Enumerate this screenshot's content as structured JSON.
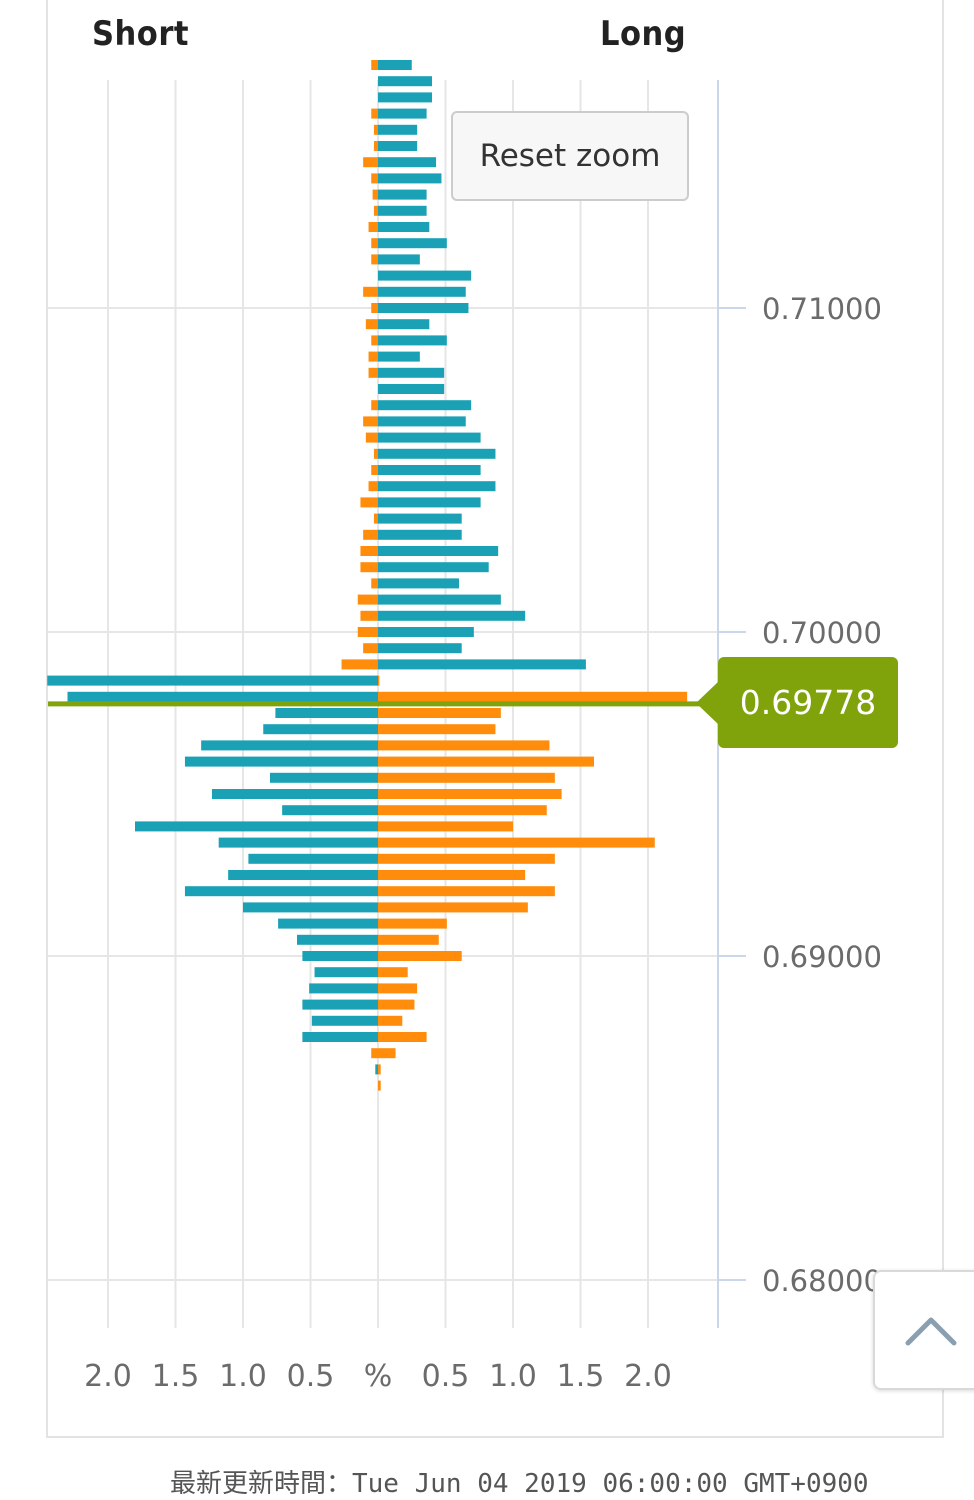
{
  "header": {
    "short_label": "Short",
    "long_label": "Long"
  },
  "controls": {
    "reset_zoom_label": "Reset zoom"
  },
  "current_price": {
    "label": "0.69778",
    "value": 0.69778,
    "color": "#80a30c"
  },
  "footer": {
    "updated_text": "最新更新時間：Tue Jun 04 2019 06:00:00 GMT+0900"
  },
  "colors": {
    "blue": "#1aa1b5",
    "orange": "#ff8c0a",
    "grid": "#e6e6e6",
    "axis": "#ccd6eb"
  },
  "icons": {
    "scroll_top": "chevron-up-icon"
  },
  "chart_data": {
    "type": "bar",
    "orientation": "horizontal",
    "unit": "%",
    "x_tick_labels": [
      "2.0",
      "1.5",
      "1.0",
      "0.5",
      "%",
      "0.5",
      "1.0",
      "1.5",
      "2.0"
    ],
    "y_tick_labels": [
      "0.71000",
      "0.70000",
      "0.69000",
      "0.68000"
    ],
    "y_ticks": [
      0.71,
      0.7,
      0.69,
      0.68
    ],
    "xlim": [
      -2.45,
      2.45
    ],
    "ylim": [
      0.6795,
      0.7185
    ],
    "grid": true,
    "bin_size": 0.0005,
    "series": [
      {
        "name": "Short",
        "points": [
          [
            0.7175,
            0.05,
            0
          ],
          [
            0.717,
            0,
            0
          ],
          [
            0.7165,
            0,
            0
          ],
          [
            0.716,
            0.05,
            0
          ],
          [
            0.7155,
            0.03,
            0
          ],
          [
            0.715,
            0.03,
            0
          ],
          [
            0.7145,
            0.11,
            0
          ],
          [
            0.714,
            0.05,
            0
          ],
          [
            0.7135,
            0.04,
            0
          ],
          [
            0.713,
            0.03,
            0
          ],
          [
            0.7125,
            0.07,
            0
          ],
          [
            0.712,
            0.05,
            0
          ],
          [
            0.7115,
            0.05,
            0
          ],
          [
            0.711,
            0,
            0
          ],
          [
            0.7105,
            0.11,
            0
          ],
          [
            0.71,
            0.05,
            0
          ],
          [
            0.7095,
            0.09,
            0
          ],
          [
            0.709,
            0.05,
            0
          ],
          [
            0.7085,
            0.07,
            0
          ],
          [
            0.708,
            0.07,
            0
          ],
          [
            0.7075,
            0,
            0
          ],
          [
            0.707,
            0.05,
            0
          ],
          [
            0.7065,
            0.11,
            0
          ],
          [
            0.706,
            0.09,
            0
          ],
          [
            0.7055,
            0.03,
            0
          ],
          [
            0.705,
            0.05,
            0
          ],
          [
            0.7045,
            0.07,
            0
          ],
          [
            0.704,
            0.13,
            0
          ],
          [
            0.7035,
            0.03,
            0
          ],
          [
            0.703,
            0.11,
            0
          ],
          [
            0.7025,
            0.13,
            0
          ],
          [
            0.702,
            0.13,
            0
          ],
          [
            0.7015,
            0.05,
            0
          ],
          [
            0.701,
            0.15,
            0
          ],
          [
            0.7005,
            0.13,
            0
          ],
          [
            0.7,
            0.15,
            0
          ],
          [
            0.6995,
            0.11,
            0
          ],
          [
            0.699,
            0.27,
            0
          ],
          [
            0.6985,
            0,
            2.45
          ],
          [
            0.698,
            0,
            2.3
          ],
          [
            0.6975,
            0,
            0.76
          ],
          [
            0.697,
            0,
            0.85
          ],
          [
            0.6965,
            0,
            1.31
          ],
          [
            0.696,
            0,
            1.43
          ],
          [
            0.6955,
            0,
            0.8
          ],
          [
            0.695,
            0,
            1.23
          ],
          [
            0.6945,
            0,
            0.71
          ],
          [
            0.694,
            0,
            1.8
          ],
          [
            0.6935,
            0,
            1.18
          ],
          [
            0.693,
            0,
            0.96
          ],
          [
            0.6925,
            0,
            1.11
          ],
          [
            0.692,
            0,
            1.43
          ],
          [
            0.6915,
            0,
            1.0
          ],
          [
            0.691,
            0,
            0.74
          ],
          [
            0.6905,
            0,
            0.6
          ],
          [
            0.69,
            0,
            0.56
          ],
          [
            0.6895,
            0,
            0.47
          ],
          [
            0.689,
            0,
            0.51
          ],
          [
            0.6885,
            0,
            0.56
          ],
          [
            0.688,
            0,
            0.49
          ],
          [
            0.6875,
            0,
            0.56
          ],
          [
            0.687,
            0.05,
            0
          ],
          [
            0.6865,
            0,
            0.02
          ],
          [
            0.686,
            0,
            0
          ]
        ]
      },
      {
        "name": "Long",
        "points": [
          [
            0.7175,
            0.25,
            0
          ],
          [
            0.717,
            0.4,
            0
          ],
          [
            0.7165,
            0.4,
            0
          ],
          [
            0.716,
            0.36,
            0
          ],
          [
            0.7155,
            0.29,
            0
          ],
          [
            0.715,
            0.29,
            0
          ],
          [
            0.7145,
            0.43,
            0
          ],
          [
            0.714,
            0.47,
            0
          ],
          [
            0.7135,
            0.36,
            0
          ],
          [
            0.713,
            0.36,
            0
          ],
          [
            0.7125,
            0.38,
            0
          ],
          [
            0.712,
            0.51,
            0
          ],
          [
            0.7115,
            0.31,
            0
          ],
          [
            0.711,
            0.69,
            0
          ],
          [
            0.7105,
            0.65,
            0
          ],
          [
            0.71,
            0.67,
            0
          ],
          [
            0.7095,
            0.38,
            0
          ],
          [
            0.709,
            0.51,
            0
          ],
          [
            0.7085,
            0.31,
            0
          ],
          [
            0.708,
            0.49,
            0
          ],
          [
            0.7075,
            0.49,
            0
          ],
          [
            0.707,
            0.69,
            0
          ],
          [
            0.7065,
            0.65,
            0
          ],
          [
            0.706,
            0.76,
            0
          ],
          [
            0.7055,
            0.87,
            0
          ],
          [
            0.705,
            0.76,
            0
          ],
          [
            0.7045,
            0.87,
            0
          ],
          [
            0.704,
            0.76,
            0
          ],
          [
            0.7035,
            0.62,
            0
          ],
          [
            0.703,
            0.62,
            0
          ],
          [
            0.7025,
            0.89,
            0
          ],
          [
            0.702,
            0.82,
            0
          ],
          [
            0.7015,
            0.6,
            0
          ],
          [
            0.701,
            0.91,
            0
          ],
          [
            0.7005,
            1.09,
            0
          ],
          [
            0.7,
            0.71,
            0
          ],
          [
            0.6995,
            0.62,
            0
          ],
          [
            0.699,
            1.54,
            0
          ],
          [
            0.6985,
            0,
            0.01
          ],
          [
            0.698,
            0,
            2.29
          ],
          [
            0.6975,
            0,
            0.91
          ],
          [
            0.697,
            0,
            0.87
          ],
          [
            0.6965,
            0,
            1.27
          ],
          [
            0.696,
            0,
            1.6
          ],
          [
            0.6955,
            0,
            1.31
          ],
          [
            0.695,
            0,
            1.36
          ],
          [
            0.6945,
            0,
            1.25
          ],
          [
            0.694,
            0,
            1.0
          ],
          [
            0.6935,
            0,
            2.05
          ],
          [
            0.693,
            0,
            1.31
          ],
          [
            0.6925,
            0,
            1.09
          ],
          [
            0.692,
            0,
            1.31
          ],
          [
            0.6915,
            0,
            1.11
          ],
          [
            0.691,
            0,
            0.51
          ],
          [
            0.6905,
            0,
            0.45
          ],
          [
            0.69,
            0,
            0.62
          ],
          [
            0.6895,
            0,
            0.22
          ],
          [
            0.689,
            0,
            0.29
          ],
          [
            0.6885,
            0,
            0.27
          ],
          [
            0.688,
            0,
            0.18
          ],
          [
            0.6875,
            0,
            0.36
          ],
          [
            0.687,
            0,
            0.13
          ],
          [
            0.6865,
            0,
            0.02
          ],
          [
            0.686,
            0,
            0.02
          ]
        ]
      }
    ]
  }
}
